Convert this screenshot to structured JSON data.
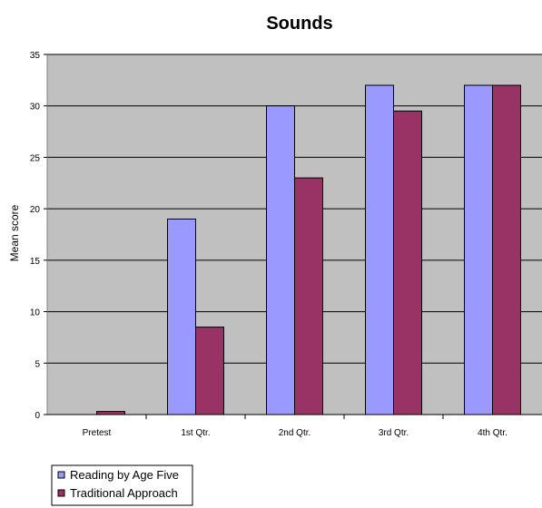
{
  "chart_data": {
    "type": "bar",
    "title": "Sounds",
    "ylabel": "Mean score",
    "xlabel": "",
    "categories": [
      "Pretest",
      "1st Qtr.",
      "2nd Qtr.",
      "3rd Qtr.",
      "4th Qtr."
    ],
    "series": [
      {
        "name": "Reading by Age Five",
        "values": [
          0,
          19,
          30,
          32,
          32
        ],
        "color": "#9999ff"
      },
      {
        "name": "Traditional Approach",
        "values": [
          0.3,
          8.5,
          23,
          29.5,
          32
        ],
        "color": "#993366"
      }
    ],
    "ylim": [
      0,
      35
    ],
    "yticks": [
      0,
      5,
      10,
      15,
      20,
      25,
      30,
      35
    ],
    "grid": true,
    "plot_background": "#c0c0c0",
    "legend_position": "bottom-left"
  }
}
